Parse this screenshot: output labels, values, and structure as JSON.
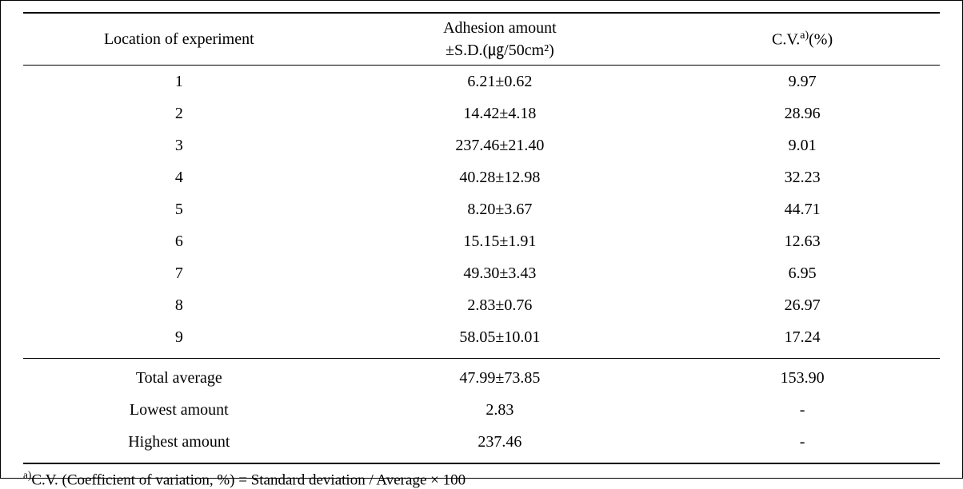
{
  "table": {
    "headers": {
      "col1": "Location of experiment",
      "col2_line1": "Adhesion amount",
      "col2_line2": "±S.D.(㎍/50cm²)",
      "col3_pre": "C.V.",
      "col3_sup": "a)",
      "col3_post": "(%)"
    },
    "rows": [
      {
        "location": "1",
        "adhesion": "6.21±0.62",
        "cv": "9.97"
      },
      {
        "location": "2",
        "adhesion": "14.42±4.18",
        "cv": "28.96"
      },
      {
        "location": "3",
        "adhesion": "237.46±21.40",
        "cv": "9.01"
      },
      {
        "location": "4",
        "adhesion": "40.28±12.98",
        "cv": "32.23"
      },
      {
        "location": "5",
        "adhesion": "8.20±3.67",
        "cv": "44.71"
      },
      {
        "location": "6",
        "adhesion": "15.15±1.91",
        "cv": "12.63"
      },
      {
        "location": "7",
        "adhesion": "49.30±3.43",
        "cv": "6.95"
      },
      {
        "location": "8",
        "adhesion": "2.83±0.76",
        "cv": "26.97"
      },
      {
        "location": "9",
        "adhesion": "58.05±10.01",
        "cv": "17.24"
      }
    ],
    "summary": [
      {
        "label": "Total average",
        "adhesion": "47.99±73.85",
        "cv": "153.90"
      },
      {
        "label": "Lowest amount",
        "adhesion": "2.83",
        "cv": "-"
      },
      {
        "label": "Highest amount",
        "adhesion": "237.46",
        "cv": "-"
      }
    ],
    "footnote": {
      "sup": "a)",
      "text": "C.V. (Coefficient of variation, %) = Standard deviation / Average × 100"
    }
  }
}
